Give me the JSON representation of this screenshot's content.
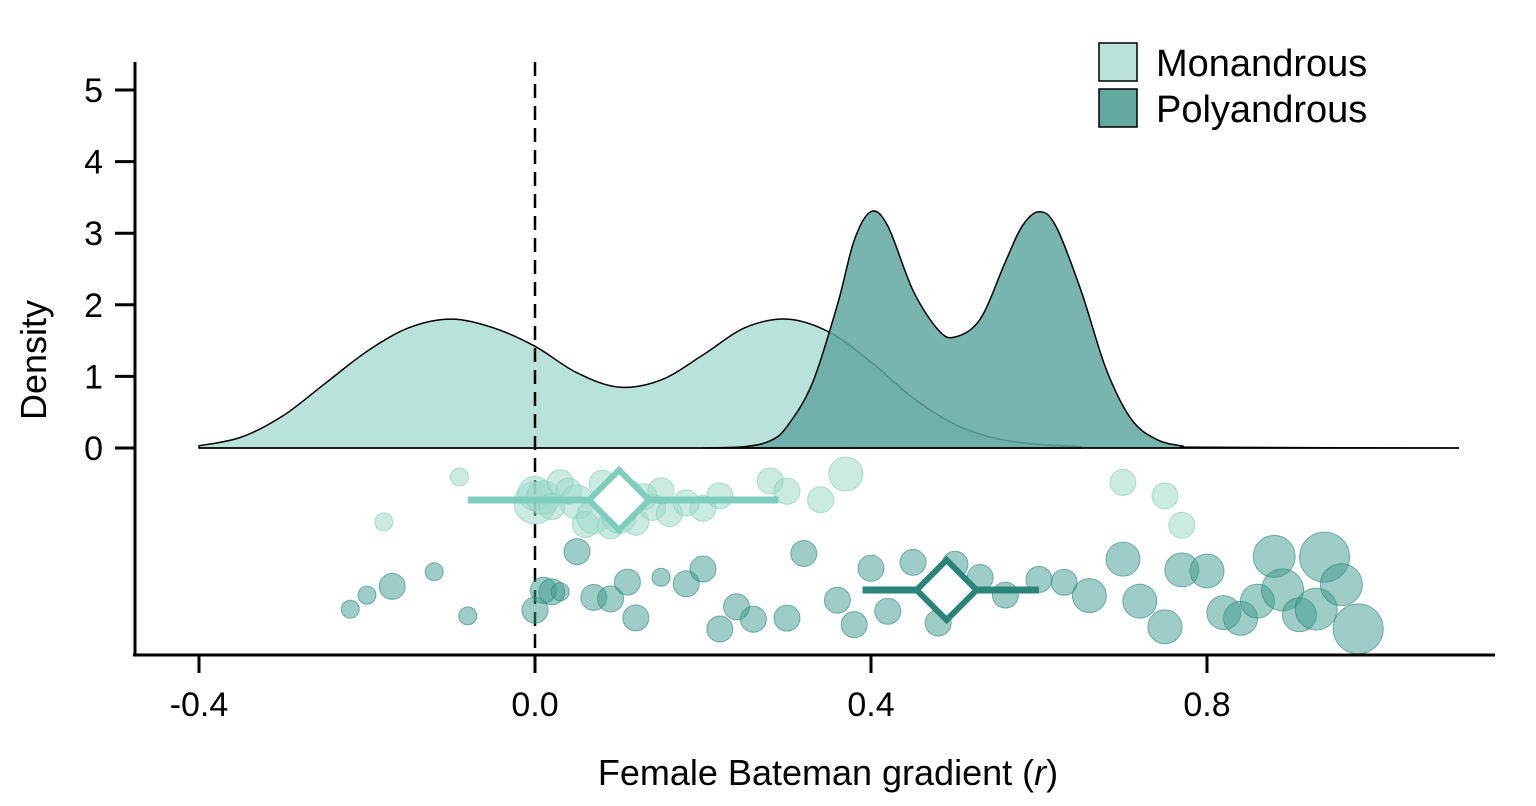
{
  "chart_data": {
    "type": "density_raincloud",
    "xlabel_prefix": "Female Bateman gradient (",
    "xlabel_var": "r",
    "xlabel_suffix": ")",
    "ylabel": "Density",
    "xlim": [
      -0.4,
      1.1
    ],
    "ylim": [
      0,
      5.2
    ],
    "x_ticks": [
      -0.4,
      0.0,
      0.4,
      0.8
    ],
    "x_tick_labels": [
      "-0.4",
      "0.0",
      "0.4",
      "0.8"
    ],
    "y_ticks": [
      0,
      1,
      2,
      3,
      4,
      5
    ],
    "y_tick_labels": [
      "0",
      "1",
      "2",
      "3",
      "4",
      "5"
    ],
    "reference_line_x": 0,
    "legend_position": "top-right",
    "series": [
      {
        "name": "Monandrous",
        "fill": "#b8e2da",
        "point_color": "#9fd8cb",
        "stroke_color": "#7fcdbd",
        "density": [
          [
            -0.4,
            0.03
          ],
          [
            -0.35,
            0.15
          ],
          [
            -0.3,
            0.45
          ],
          [
            -0.25,
            0.9
          ],
          [
            -0.2,
            1.35
          ],
          [
            -0.15,
            1.68
          ],
          [
            -0.1,
            1.8
          ],
          [
            -0.05,
            1.68
          ],
          [
            0.0,
            1.42
          ],
          [
            0.05,
            1.05
          ],
          [
            0.1,
            0.85
          ],
          [
            0.15,
            0.95
          ],
          [
            0.2,
            1.3
          ],
          [
            0.25,
            1.68
          ],
          [
            0.3,
            1.8
          ],
          [
            0.35,
            1.62
          ],
          [
            0.4,
            1.2
          ],
          [
            0.45,
            0.7
          ],
          [
            0.5,
            0.33
          ],
          [
            0.55,
            0.13
          ],
          [
            0.6,
            0.05
          ],
          [
            0.65,
            0.02
          ]
        ],
        "mean": 0.1,
        "ci": [
          -0.08,
          0.29
        ],
        "points": [
          {
            "x": -0.18,
            "w": 1
          },
          {
            "x": -0.09,
            "w": 1
          },
          {
            "x": 0.0,
            "w": 4
          },
          {
            "x": 0.0,
            "w": 3
          },
          {
            "x": 0.01,
            "w": 3
          },
          {
            "x": 0.02,
            "w": 2
          },
          {
            "x": 0.03,
            "w": 2
          },
          {
            "x": 0.04,
            "w": 2
          },
          {
            "x": 0.05,
            "w": 3
          },
          {
            "x": 0.06,
            "w": 2
          },
          {
            "x": 0.07,
            "w": 3
          },
          {
            "x": 0.08,
            "w": 2
          },
          {
            "x": 0.09,
            "w": 2
          },
          {
            "x": 0.1,
            "w": 3
          },
          {
            "x": 0.11,
            "w": 3
          },
          {
            "x": 0.12,
            "w": 2
          },
          {
            "x": 0.13,
            "w": 2
          },
          {
            "x": 0.14,
            "w": 2
          },
          {
            "x": 0.15,
            "w": 2
          },
          {
            "x": 0.16,
            "w": 2
          },
          {
            "x": 0.18,
            "w": 2
          },
          {
            "x": 0.2,
            "w": 2
          },
          {
            "x": 0.22,
            "w": 2
          },
          {
            "x": 0.28,
            "w": 2
          },
          {
            "x": 0.3,
            "w": 2
          },
          {
            "x": 0.34,
            "w": 2
          },
          {
            "x": 0.37,
            "w": 3
          },
          {
            "x": 0.7,
            "w": 2
          },
          {
            "x": 0.75,
            "w": 2
          },
          {
            "x": 0.77,
            "w": 2
          }
        ]
      },
      {
        "name": "Polyandrous",
        "fill": "#62a8a1",
        "point_color": "#3e9a8e",
        "stroke_color": "#2a8479",
        "density": [
          [
            0.2,
            0.0
          ],
          [
            0.25,
            0.02
          ],
          [
            0.28,
            0.1
          ],
          [
            0.3,
            0.3
          ],
          [
            0.33,
            0.9
          ],
          [
            0.36,
            2.0
          ],
          [
            0.38,
            2.9
          ],
          [
            0.4,
            3.3
          ],
          [
            0.42,
            3.1
          ],
          [
            0.45,
            2.2
          ],
          [
            0.48,
            1.65
          ],
          [
            0.5,
            1.55
          ],
          [
            0.53,
            1.8
          ],
          [
            0.56,
            2.6
          ],
          [
            0.58,
            3.1
          ],
          [
            0.6,
            3.3
          ],
          [
            0.62,
            3.1
          ],
          [
            0.65,
            2.2
          ],
          [
            0.68,
            1.1
          ],
          [
            0.71,
            0.4
          ],
          [
            0.74,
            0.12
          ],
          [
            0.77,
            0.03
          ],
          [
            0.8,
            0.01
          ],
          [
            1.1,
            0.0
          ]
        ],
        "mean": 0.49,
        "ci": [
          0.39,
          0.6
        ],
        "points": [
          {
            "x": -0.22,
            "w": 1
          },
          {
            "x": -0.2,
            "w": 1
          },
          {
            "x": -0.17,
            "w": 2
          },
          {
            "x": -0.12,
            "w": 1
          },
          {
            "x": -0.08,
            "w": 1
          },
          {
            "x": 0.0,
            "w": 2
          },
          {
            "x": 0.01,
            "w": 2
          },
          {
            "x": 0.02,
            "w": 2
          },
          {
            "x": 0.03,
            "w": 1
          },
          {
            "x": 0.05,
            "w": 2
          },
          {
            "x": 0.07,
            "w": 2
          },
          {
            "x": 0.09,
            "w": 2
          },
          {
            "x": 0.11,
            "w": 2
          },
          {
            "x": 0.12,
            "w": 2
          },
          {
            "x": 0.15,
            "w": 1
          },
          {
            "x": 0.18,
            "w": 2
          },
          {
            "x": 0.2,
            "w": 2
          },
          {
            "x": 0.22,
            "w": 2
          },
          {
            "x": 0.24,
            "w": 2
          },
          {
            "x": 0.26,
            "w": 2
          },
          {
            "x": 0.3,
            "w": 2
          },
          {
            "x": 0.32,
            "w": 2
          },
          {
            "x": 0.36,
            "w": 2
          },
          {
            "x": 0.38,
            "w": 2
          },
          {
            "x": 0.4,
            "w": 2
          },
          {
            "x": 0.42,
            "w": 2
          },
          {
            "x": 0.45,
            "w": 2
          },
          {
            "x": 0.48,
            "w": 2
          },
          {
            "x": 0.5,
            "w": 2
          },
          {
            "x": 0.53,
            "w": 2
          },
          {
            "x": 0.56,
            "w": 2
          },
          {
            "x": 0.6,
            "w": 2
          },
          {
            "x": 0.63,
            "w": 2
          },
          {
            "x": 0.66,
            "w": 3
          },
          {
            "x": 0.7,
            "w": 3
          },
          {
            "x": 0.72,
            "w": 3
          },
          {
            "x": 0.75,
            "w": 3
          },
          {
            "x": 0.77,
            "w": 3
          },
          {
            "x": 0.8,
            "w": 3
          },
          {
            "x": 0.82,
            "w": 3
          },
          {
            "x": 0.84,
            "w": 3
          },
          {
            "x": 0.86,
            "w": 3
          },
          {
            "x": 0.88,
            "w": 4
          },
          {
            "x": 0.89,
            "w": 4
          },
          {
            "x": 0.91,
            "w": 3
          },
          {
            "x": 0.93,
            "w": 4
          },
          {
            "x": 0.94,
            "w": 5
          },
          {
            "x": 0.96,
            "w": 4
          },
          {
            "x": 0.98,
            "w": 5
          }
        ]
      }
    ]
  }
}
